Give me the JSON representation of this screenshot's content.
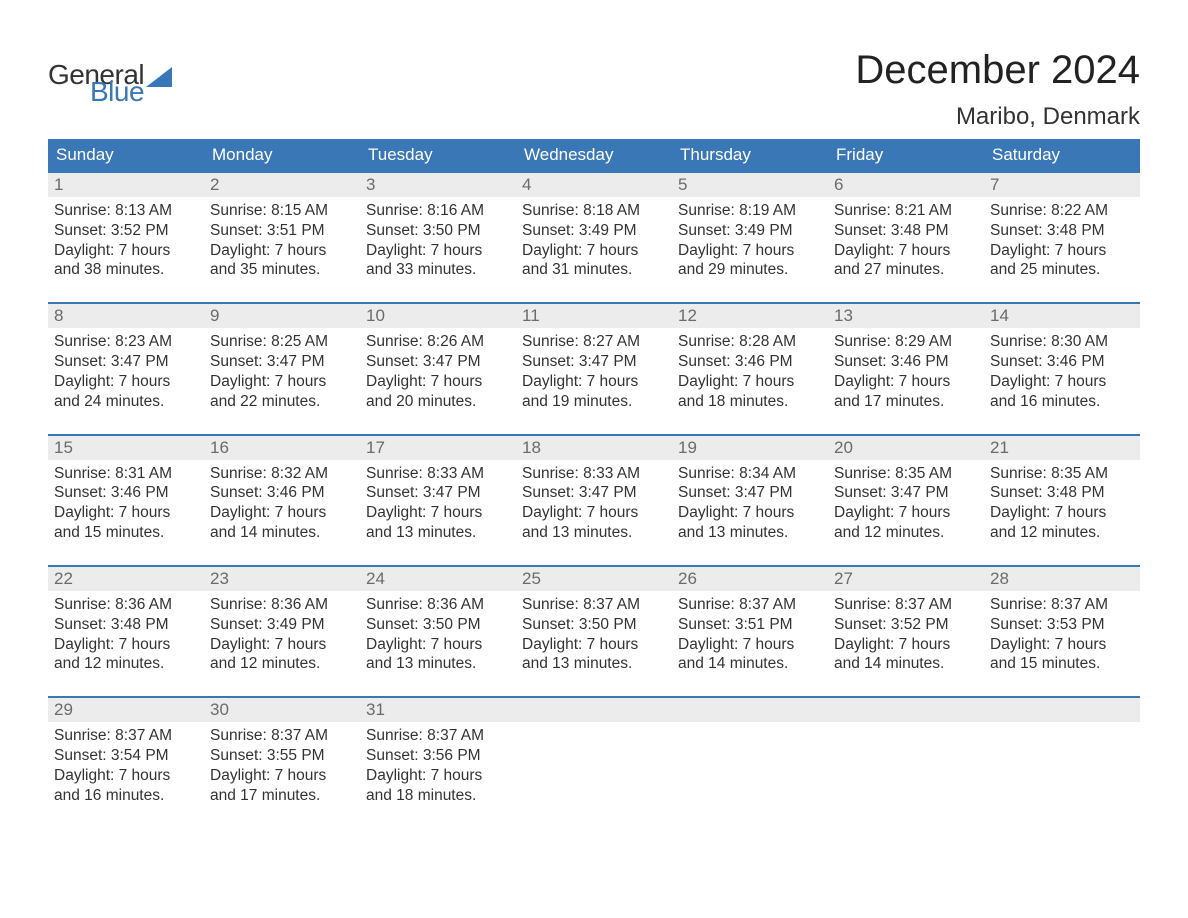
{
  "brand": {
    "part1": "General",
    "part2": "Blue",
    "color": "#3a77b7"
  },
  "title": "December 2024",
  "location": "Maribo, Denmark",
  "colors": {
    "header_bg": "#3a77b7",
    "header_text": "#ffffff",
    "daynum_bg": "#ececec",
    "daynum_text": "#6b6b6b",
    "body_text": "#333333",
    "page_bg": "#ffffff",
    "week_border": "#3a77b7"
  },
  "typography": {
    "title_fontsize": 40,
    "location_fontsize": 24,
    "dayheader_fontsize": 17,
    "daynum_fontsize": 17,
    "body_fontsize": 15.5,
    "font_family": "Arial"
  },
  "calendar": {
    "columns": [
      "Sunday",
      "Monday",
      "Tuesday",
      "Wednesday",
      "Thursday",
      "Friday",
      "Saturday"
    ],
    "weeks": [
      [
        {
          "day": "1",
          "sunrise": "8:13 AM",
          "sunset": "3:52 PM",
          "daylight": "7 hours and 38 minutes."
        },
        {
          "day": "2",
          "sunrise": "8:15 AM",
          "sunset": "3:51 PM",
          "daylight": "7 hours and 35 minutes."
        },
        {
          "day": "3",
          "sunrise": "8:16 AM",
          "sunset": "3:50 PM",
          "daylight": "7 hours and 33 minutes."
        },
        {
          "day": "4",
          "sunrise": "8:18 AM",
          "sunset": "3:49 PM",
          "daylight": "7 hours and 31 minutes."
        },
        {
          "day": "5",
          "sunrise": "8:19 AM",
          "sunset": "3:49 PM",
          "daylight": "7 hours and 29 minutes."
        },
        {
          "day": "6",
          "sunrise": "8:21 AM",
          "sunset": "3:48 PM",
          "daylight": "7 hours and 27 minutes."
        },
        {
          "day": "7",
          "sunrise": "8:22 AM",
          "sunset": "3:48 PM",
          "daylight": "7 hours and 25 minutes."
        }
      ],
      [
        {
          "day": "8",
          "sunrise": "8:23 AM",
          "sunset": "3:47 PM",
          "daylight": "7 hours and 24 minutes."
        },
        {
          "day": "9",
          "sunrise": "8:25 AM",
          "sunset": "3:47 PM",
          "daylight": "7 hours and 22 minutes."
        },
        {
          "day": "10",
          "sunrise": "8:26 AM",
          "sunset": "3:47 PM",
          "daylight": "7 hours and 20 minutes."
        },
        {
          "day": "11",
          "sunrise": "8:27 AM",
          "sunset": "3:47 PM",
          "daylight": "7 hours and 19 minutes."
        },
        {
          "day": "12",
          "sunrise": "8:28 AM",
          "sunset": "3:46 PM",
          "daylight": "7 hours and 18 minutes."
        },
        {
          "day": "13",
          "sunrise": "8:29 AM",
          "sunset": "3:46 PM",
          "daylight": "7 hours and 17 minutes."
        },
        {
          "day": "14",
          "sunrise": "8:30 AM",
          "sunset": "3:46 PM",
          "daylight": "7 hours and 16 minutes."
        }
      ],
      [
        {
          "day": "15",
          "sunrise": "8:31 AM",
          "sunset": "3:46 PM",
          "daylight": "7 hours and 15 minutes."
        },
        {
          "day": "16",
          "sunrise": "8:32 AM",
          "sunset": "3:46 PM",
          "daylight": "7 hours and 14 minutes."
        },
        {
          "day": "17",
          "sunrise": "8:33 AM",
          "sunset": "3:47 PM",
          "daylight": "7 hours and 13 minutes."
        },
        {
          "day": "18",
          "sunrise": "8:33 AM",
          "sunset": "3:47 PM",
          "daylight": "7 hours and 13 minutes."
        },
        {
          "day": "19",
          "sunrise": "8:34 AM",
          "sunset": "3:47 PM",
          "daylight": "7 hours and 13 minutes."
        },
        {
          "day": "20",
          "sunrise": "8:35 AM",
          "sunset": "3:47 PM",
          "daylight": "7 hours and 12 minutes."
        },
        {
          "day": "21",
          "sunrise": "8:35 AM",
          "sunset": "3:48 PM",
          "daylight": "7 hours and 12 minutes."
        }
      ],
      [
        {
          "day": "22",
          "sunrise": "8:36 AM",
          "sunset": "3:48 PM",
          "daylight": "7 hours and 12 minutes."
        },
        {
          "day": "23",
          "sunrise": "8:36 AM",
          "sunset": "3:49 PM",
          "daylight": "7 hours and 12 minutes."
        },
        {
          "day": "24",
          "sunrise": "8:36 AM",
          "sunset": "3:50 PM",
          "daylight": "7 hours and 13 minutes."
        },
        {
          "day": "25",
          "sunrise": "8:37 AM",
          "sunset": "3:50 PM",
          "daylight": "7 hours and 13 minutes."
        },
        {
          "day": "26",
          "sunrise": "8:37 AM",
          "sunset": "3:51 PM",
          "daylight": "7 hours and 14 minutes."
        },
        {
          "day": "27",
          "sunrise": "8:37 AM",
          "sunset": "3:52 PM",
          "daylight": "7 hours and 14 minutes."
        },
        {
          "day": "28",
          "sunrise": "8:37 AM",
          "sunset": "3:53 PM",
          "daylight": "7 hours and 15 minutes."
        }
      ],
      [
        {
          "day": "29",
          "sunrise": "8:37 AM",
          "sunset": "3:54 PM",
          "daylight": "7 hours and 16 minutes."
        },
        {
          "day": "30",
          "sunrise": "8:37 AM",
          "sunset": "3:55 PM",
          "daylight": "7 hours and 17 minutes."
        },
        {
          "day": "31",
          "sunrise": "8:37 AM",
          "sunset": "3:56 PM",
          "daylight": "7 hours and 18 minutes."
        },
        null,
        null,
        null,
        null
      ]
    ]
  },
  "labels": {
    "sunrise": "Sunrise:",
    "sunset": "Sunset:",
    "daylight": "Daylight:"
  }
}
